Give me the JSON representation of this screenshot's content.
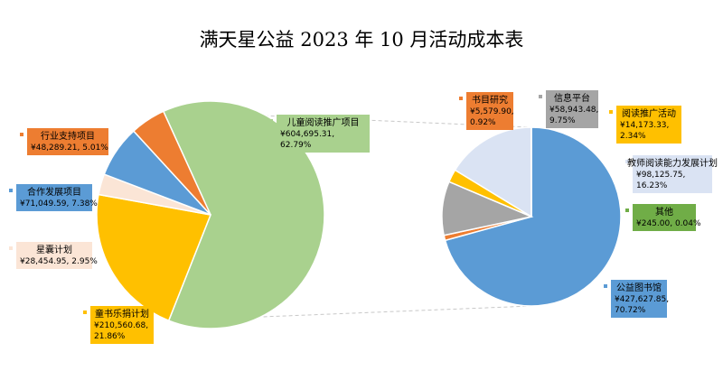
{
  "chart_data": [
    {
      "type": "pie",
      "title": "满天星公益 2023 年 10 月活动成本表",
      "slices": [
        {
          "name": "儿童阅读推广项目",
          "value_text": "¥604,695.31",
          "percent_text": "62.79%",
          "value": 604695.31,
          "percent": 62.79,
          "color": "#A9D18E"
        },
        {
          "name": "童书乐捐计划",
          "value_text": "¥210,560.68",
          "percent_text": "21.86%",
          "value": 210560.68,
          "percent": 21.86,
          "color": "#FFC000"
        },
        {
          "name": "星囊计划",
          "value_text": "¥28,454.95",
          "percent_text": "2.95%",
          "value": 28454.95,
          "percent": 2.95,
          "color": "#FBE5D6"
        },
        {
          "name": "合作发展项目",
          "value_text": "¥71,049.59",
          "percent_text": "7.38%",
          "value": 71049.59,
          "percent": 7.38,
          "color": "#5B9BD5"
        },
        {
          "name": "行业支持项目",
          "value_text": "¥48,289.21",
          "percent_text": "5.01%",
          "value": 48289.21,
          "percent": 5.01,
          "color": "#ED7D31"
        }
      ]
    },
    {
      "type": "pie",
      "slices": [
        {
          "name": "公益图书馆",
          "value_text": "¥427,627.85",
          "percent_text": "70.72%",
          "value": 427627.85,
          "percent": 70.72,
          "color": "#5B9BD5"
        },
        {
          "name": "书目研究",
          "value_text": "¥5,579.90",
          "percent_text": "0.92%",
          "value": 5579.9,
          "percent": 0.92,
          "color": "#ED7D31"
        },
        {
          "name": "信息平台",
          "value_text": "¥58,943.48",
          "percent_text": "9.75%",
          "value": 58943.48,
          "percent": 9.75,
          "color": "#A5A5A5"
        },
        {
          "name": "阅读推广活动",
          "value_text": "¥14,173.33",
          "percent_text": "2.34%",
          "value": 14173.33,
          "percent": 2.34,
          "color": "#FFC000"
        },
        {
          "name": "教师阅读能力发展计划",
          "value_text": "¥98,125.75",
          "percent_text": "16.23%",
          "value": 98125.75,
          "percent": 16.23,
          "color": "#DAE3F3"
        },
        {
          "name": "其他",
          "value_text": "¥245.00",
          "percent_text": "0.04%",
          "value": 245.0,
          "percent": 0.04,
          "color": "#70AD47"
        }
      ]
    }
  ]
}
